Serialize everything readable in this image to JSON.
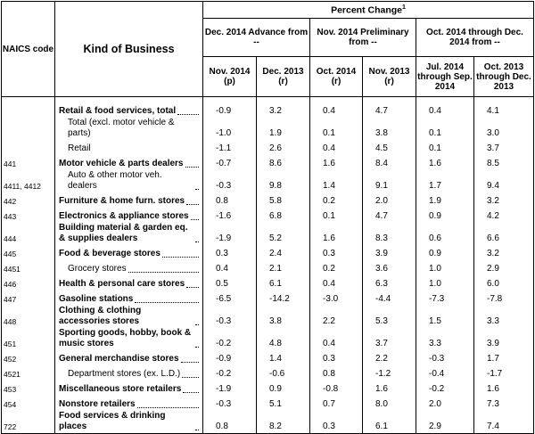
{
  "header": {
    "code": "NAICS code",
    "kind": "Kind of Business",
    "percent_change": "Percent Change",
    "footnote": "1",
    "groups": [
      "Dec. 2014 Advance from --",
      "Nov. 2014 Preliminary from --",
      "Oct. 2014 through Dec. 2014 from --"
    ],
    "columns": [
      {
        "label": "Nov. 2014",
        "note": "(p)"
      },
      {
        "label": "Dec. 2013",
        "note": "(r)"
      },
      {
        "label": "Oct. 2014",
        "note": "(r)"
      },
      {
        "label": "Nov. 2013",
        "note": "(r)"
      },
      {
        "label": "Jul. 2014 through Sep. 2014"
      },
      {
        "label": "Oct. 2013 through Dec. 2013"
      }
    ]
  },
  "table": {
    "rows": [
      {
        "code": "",
        "kind": "Retail & food services, total",
        "bold": true,
        "values": [
          "-0.9",
          "3.2",
          "0.4",
          "4.7",
          "0.4",
          "4.1"
        ]
      },
      {
        "code": "",
        "kind": "Total (excl. motor vehicle & parts)",
        "indent": true,
        "values": [
          "-1.0",
          "1.9",
          "0.1",
          "3.8",
          "0.1",
          "3.0"
        ]
      },
      {
        "code": "",
        "kind": "Retail",
        "indent": true,
        "values": [
          "-1.1",
          "2.6",
          "0.4",
          "4.5",
          "0.1",
          "3.7"
        ]
      },
      {
        "code": "441",
        "kind": "Motor vehicle & parts dealers",
        "bold": true,
        "values": [
          "-0.7",
          "8.6",
          "1.6",
          "8.4",
          "1.6",
          "8.5"
        ]
      },
      {
        "code": "4411, 4412",
        "kind": "Auto & other motor veh. dealers",
        "indent": true,
        "values": [
          "-0.3",
          "9.8",
          "1.4",
          "9.1",
          "1.7",
          "9.4"
        ]
      },
      {
        "code": "442",
        "kind": "Furniture & home furn. stores",
        "bold": true,
        "values": [
          "0.8",
          "5.8",
          "0.2",
          "2.0",
          "1.9",
          "3.2"
        ]
      },
      {
        "code": "443",
        "kind": "Electronics & appliance stores",
        "bold": true,
        "values": [
          "-1.6",
          "6.8",
          "0.1",
          "4.7",
          "0.9",
          "4.2"
        ]
      },
      {
        "code": "444",
        "kind": "Building material & garden eq. & supplies dealers",
        "bold": true,
        "values": [
          "-1.9",
          "5.2",
          "1.6",
          "8.3",
          "0.6",
          "6.6"
        ]
      },
      {
        "code": "445",
        "kind": "Food & beverage stores",
        "bold": true,
        "values": [
          "0.3",
          "2.4",
          "0.3",
          "3.9",
          "0.9",
          "3.2"
        ]
      },
      {
        "code": "4451",
        "kind": "Grocery stores",
        "indent": true,
        "values": [
          "0.4",
          "2.1",
          "0.2",
          "3.6",
          "1.0",
          "2.9"
        ]
      },
      {
        "code": "446",
        "kind": "Health & personal care stores",
        "bold": true,
        "values": [
          "0.5",
          "6.1",
          "0.4",
          "6.3",
          "1.0",
          "6.0"
        ]
      },
      {
        "code": "447",
        "kind": "Gasoline stations",
        "bold": true,
        "values": [
          "-6.5",
          "-14.2",
          "-3.0",
          "-4.4",
          "-7.3",
          "-7.8"
        ]
      },
      {
        "code": "448",
        "kind": "Clothing & clothing accessories stores",
        "bold": true,
        "values": [
          "-0.3",
          "3.8",
          "2.2",
          "5.3",
          "1.5",
          "3.3"
        ]
      },
      {
        "code": "451",
        "kind": "Sporting goods, hobby, book & music stores",
        "bold": true,
        "values": [
          "-0.2",
          "4.8",
          "0.4",
          "3.7",
          "3.3",
          "3.9"
        ]
      },
      {
        "code": "452",
        "kind": "General merchandise stores",
        "bold": true,
        "values": [
          "-0.9",
          "1.4",
          "0.3",
          "2.2",
          "-0.3",
          "1.7"
        ]
      },
      {
        "code": "4521",
        "kind": "Department stores (ex. L.D.)",
        "indent": true,
        "values": [
          "-0.2",
          "-0.6",
          "0.8",
          "-1.2",
          "-0.4",
          "-1.7"
        ]
      },
      {
        "code": "453",
        "kind": "Miscellaneous store retailers",
        "bold": true,
        "values": [
          "-1.9",
          "0.9",
          "-0.8",
          "1.6",
          "-0.2",
          "1.6"
        ]
      },
      {
        "code": "454",
        "kind": "Nonstore retailers",
        "bold": true,
        "values": [
          "-0.3",
          "5.1",
          "0.7",
          "8.0",
          "2.0",
          "7.3"
        ]
      },
      {
        "code": "722",
        "kind": "Food services & drinking places",
        "bold": true,
        "values": [
          "0.8",
          "8.2",
          "0.3",
          "6.1",
          "2.9",
          "7.4"
        ]
      }
    ]
  }
}
